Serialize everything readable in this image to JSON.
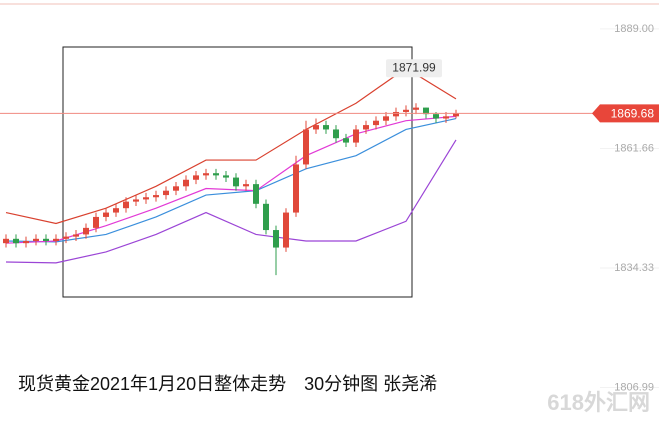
{
  "chart_data": {
    "type": "candlestick",
    "title": "现货黄金2021年1月20日整体走势　30分钟图 张尧浠",
    "watermark": "618外汇网",
    "annotation": "1871.99",
    "up_color": "#e0483a",
    "down_color": "#2f9e4c",
    "ylim": [
      1798.2,
      1895.6
    ],
    "yticks": [
      {
        "value": 1889,
        "label": "1889.00"
      },
      1861.66,
      1834.33,
      1806.99
    ],
    "open": [
      1840,
      1841,
      1840,
      1840.5,
      1841,
      1840.5,
      1841,
      1841.5,
      1842,
      1843.5,
      1846,
      1847,
      1848,
      1849.5,
      1850,
      1850.5,
      1851,
      1852,
      1853,
      1854.5,
      1855.5,
      1856,
      1855.5,
      1855,
      1853,
      1853.5,
      1849,
      1843,
      1839,
      1847,
      1858,
      1866,
      1867,
      1866,
      1864,
      1863,
      1866,
      1867,
      1868,
      1869,
      1870,
      1870.5,
      1871,
      1869.5,
      1868.5,
      1869
    ],
    "high": [
      1842,
      1842,
      1841.5,
      1842,
      1842,
      1842,
      1842.5,
      1843,
      1844.5,
      1847,
      1848,
      1849,
      1850.5,
      1851,
      1851.5,
      1852,
      1853,
      1854,
      1855.5,
      1856.5,
      1857,
      1857,
      1856.5,
      1856,
      1854.5,
      1854.5,
      1850,
      1844,
      1848,
      1860,
      1868,
      1868.5,
      1868,
      1867,
      1865,
      1867,
      1868,
      1869,
      1870,
      1871,
      1871.5,
      1871.99,
      1871,
      1870,
      1870,
      1870.5
    ],
    "low": [
      1839,
      1839,
      1839,
      1839.5,
      1839.5,
      1839.5,
      1840,
      1840.5,
      1841,
      1842.5,
      1845,
      1846,
      1847,
      1848.5,
      1849,
      1849.5,
      1850,
      1851,
      1852,
      1853.5,
      1854.5,
      1854.5,
      1854,
      1852,
      1852,
      1848,
      1842,
      1832.7,
      1838,
      1846,
      1857,
      1865,
      1865,
      1863,
      1862,
      1862,
      1865,
      1866,
      1867,
      1868,
      1869,
      1869.5,
      1868.5,
      1867.5,
      1867.5,
      1868.5
    ],
    "close": [
      1841,
      1840,
      1840.5,
      1841,
      1840.5,
      1841,
      1841.5,
      1842,
      1843.5,
      1846,
      1847,
      1848,
      1849.5,
      1850,
      1850.5,
      1851,
      1852,
      1853,
      1854.5,
      1855.5,
      1856,
      1855.5,
      1855,
      1853,
      1853.5,
      1849,
      1843,
      1839,
      1847,
      1858,
      1866,
      1867,
      1866,
      1864,
      1863,
      1866,
      1867,
      1868,
      1869,
      1870,
      1870.5,
      1871,
      1869.5,
      1868.5,
      1869,
      1869.68
    ],
    "band_index": [
      0,
      5,
      10,
      15,
      20,
      25,
      30,
      35,
      40,
      45
    ],
    "lines": [
      {
        "color": "#d9412f",
        "values": [
          1847,
          1844.5,
          1848,
          1853,
          1859,
          1859,
          1866,
          1872,
          1880,
          1873
        ]
      },
      {
        "color": "#3b8fdc",
        "values": [
          1840.5,
          1840.3,
          1842,
          1846,
          1851,
          1852,
          1857,
          1860,
          1866,
          1868.5
        ]
      },
      {
        "color": "#e23ad6",
        "values": [
          1840,
          1840.5,
          1844,
          1848,
          1852.5,
          1852,
          1860,
          1865,
          1868,
          1869
        ]
      },
      {
        "color": "#9b45d6",
        "values": [
          1835.7,
          1835.5,
          1838,
          1842,
          1847,
          1842,
          1840.5,
          1840.5,
          1845,
          1863.6
        ]
      }
    ]
  }
}
